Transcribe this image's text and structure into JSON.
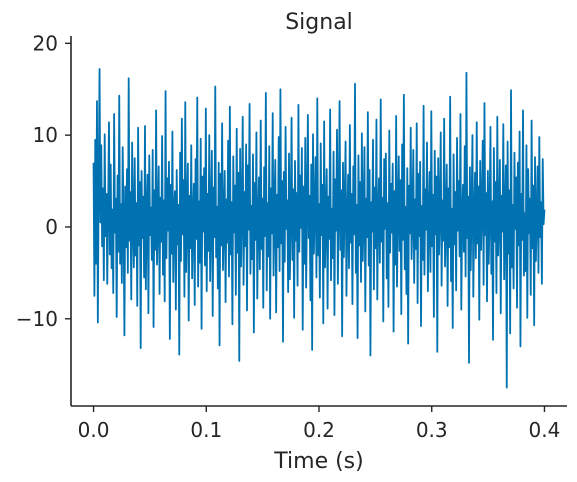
{
  "chart_data": {
    "type": "line",
    "title": "Signal",
    "xlabel": "Time (s)",
    "ylabel": "",
    "xlim": [
      -0.02,
      0.42
    ],
    "ylim": [
      -19.5,
      20.8
    ],
    "xticks": [
      0.0,
      0.1,
      0.2,
      0.3,
      0.4
    ],
    "xtick_labels": [
      "0.0",
      "0.1",
      "0.2",
      "0.3",
      "0.4"
    ],
    "yticks": [
      -10,
      0,
      10,
      20
    ],
    "ytick_labels": [
      "−10",
      "0",
      "10",
      "20"
    ],
    "grid": false,
    "legend": "none",
    "color": "#0072b2",
    "sample_interval_s": 0.0005,
    "series": [
      {
        "x_start": 0.0,
        "x_end": 0.4,
        "values": [
          7.0,
          -7.5,
          9.5,
          -4.0,
          13.7,
          -10.4,
          5.0,
          17.2,
          0.5,
          8.9,
          -2.1,
          4.2,
          -5.8,
          10.1,
          -1.0,
          3.6,
          -6.2,
          2.2,
          11.4,
          -3.0,
          6.8,
          -4.5,
          1.9,
          -7.2,
          12.3,
          -0.6,
          3.1,
          -9.8,
          5.6,
          -2.7,
          14.3,
          -4.0,
          2.5,
          -6.1,
          8.7,
          0.9,
          -11.8,
          4.4,
          -2.2,
          6.3,
          -5.0,
          16.2,
          -1.5,
          3.8,
          -7.9,
          9.2,
          0.2,
          -4.4,
          7.5,
          -3.1,
          2.6,
          -8.6,
          10.8,
          -2.0,
          4.9,
          -13.2,
          6.1,
          -1.2,
          3.3,
          -5.5,
          11.0,
          -6.8,
          1.4,
          5.7,
          -9.4,
          7.8,
          -0.9,
          2.1,
          -3.6,
          8.4,
          -10.9,
          4.0,
          -2.5,
          12.7,
          -4.1,
          0.6,
          6.6,
          -7.3,
          3.2,
          -1.6,
          9.9,
          -5.2,
          2.9,
          -8.1,
          14.8,
          -3.4,
          5.3,
          -0.4,
          7.1,
          -12.2,
          4.6,
          -2.9,
          10.4,
          -6.0,
          1.7,
          3.9,
          -9.0,
          6.2,
          -1.9,
          2.4,
          -13.9,
          8.1,
          -3.7,
          11.8,
          -0.8,
          5.1,
          -7.6,
          13.6,
          -4.9,
          2.0,
          6.9,
          -10.2,
          3.4,
          -2.3,
          8.9,
          -5.6,
          1.1,
          4.7,
          -8.5,
          7.4,
          -1.3,
          14.1,
          -6.5,
          2.8,
          -3.9,
          9.6,
          -11.1,
          5.5,
          -0.5,
          6.4,
          -4.2,
          12.9,
          -7.0,
          3.6,
          -2.6,
          10.0,
          -5.9,
          1.5,
          8.3,
          -9.7,
          4.3,
          -1.1,
          15.3,
          -3.3,
          2.2,
          -6.7,
          7.0,
          -12.9,
          5.8,
          -2.0,
          11.3,
          -4.7,
          0.8,
          6.1,
          -8.2,
          3.0,
          -1.7,
          9.4,
          -5.4,
          13.1,
          -3.0,
          2.7,
          -10.6,
          7.7,
          -0.6,
          4.5,
          -7.4,
          10.7,
          -2.8,
          5.9,
          -14.6,
          8.5,
          -4.3,
          1.3,
          12.0,
          -6.3,
          3.8,
          -2.1,
          9.0,
          -9.1,
          6.7,
          -0.3,
          13.4,
          -5.1,
          2.3,
          -3.5,
          7.9,
          -11.5,
          4.8,
          -1.4,
          10.3,
          -7.8,
          0.4,
          5.4,
          -4.6,
          11.6,
          -2.4,
          3.1,
          -8.8,
          6.5,
          -1.0,
          14.6,
          -6.9,
          2.6,
          -3.2,
          8.8,
          -10.0,
          4.2,
          -0.7,
          12.4,
          -5.3,
          1.8,
          7.3,
          -9.3,
          3.5,
          -2.2,
          9.8,
          -4.8,
          15.0,
          -1.8,
          5.0,
          -12.5,
          6.0,
          -3.8,
          10.9,
          -0.2,
          2.9,
          -7.1,
          8.0,
          -5.7,
          1.0,
          11.9,
          -3.6,
          4.1,
          -9.9,
          7.2,
          -1.5,
          3.7,
          -6.4,
          13.3,
          -2.7,
          5.6,
          -0.1,
          8.6,
          -11.2,
          4.4,
          -4.0,
          9.7,
          -6.6,
          2.1,
          12.2,
          -1.2,
          3.4,
          -8.0,
          6.8,
          -13.4,
          10.1,
          -2.9,
          1.6,
          7.6,
          -5.5,
          14.0,
          -3.1,
          2.5,
          -7.7,
          9.1,
          -0.9,
          4.6,
          -10.5,
          11.5,
          -4.4,
          0.7,
          6.3,
          -8.9,
          3.3,
          -1.3,
          12.8,
          -5.8,
          2.0,
          -3.4,
          8.2,
          -9.6,
          5.2,
          -0.4,
          10.6,
          -6.2,
          1.9,
          13.7,
          -2.5,
          4.0,
          -11.9,
          7.0,
          -3.3,
          2.8,
          9.3,
          -7.5,
          0.3,
          5.7,
          -4.5,
          11.1,
          -1.7,
          3.6,
          -8.4,
          6.6,
          -0.8,
          15.6,
          -5.0,
          2.4,
          -12.1,
          7.8,
          -2.0,
          4.9,
          -6.0,
          10.2,
          -3.7,
          1.2,
          8.7,
          -9.2,
          3.1,
          -1.1,
          12.5,
          -4.2,
          6.2,
          -14.0,
          2.7,
          -0.5,
          9.5,
          -6.8,
          4.3,
          -2.3,
          11.7,
          -7.9,
          1.5,
          5.3,
          -3.9,
          13.9,
          -1.6,
          3.2,
          -10.3,
          7.4,
          -0.2,
          8.0,
          -5.6,
          2.6,
          -8.7,
          10.5,
          -2.8,
          4.7,
          -0.6,
          6.9,
          -11.4,
          3.9,
          -4.1,
          12.1,
          -6.5,
          1.8,
          7.7,
          -2.6,
          5.1,
          -9.5,
          9.0,
          -1.4,
          14.4,
          -4.6,
          2.2,
          -7.3,
          6.4,
          -12.7,
          4.5,
          -0.7,
          10.8,
          -3.5,
          0.9,
          8.4,
          -6.1,
          3.0,
          -2.4,
          11.3,
          -8.3,
          5.8,
          -1.0,
          7.1,
          -10.8,
          2.3,
          -3.6,
          13.2,
          -5.2,
          4.1,
          -0.3,
          9.2,
          -7.0,
          1.4,
          6.0,
          -4.9,
          12.6,
          -2.1,
          3.5,
          -9.8,
          8.3,
          -0.8,
          5.5,
          -13.6,
          7.5,
          -3.0,
          1.7,
          10.3,
          -6.4,
          2.9,
          -1.5,
          11.8,
          -4.3,
          0.5,
          6.8,
          -8.6,
          4.2,
          -2.2,
          14.2,
          -5.9,
          2.0,
          -11.0,
          7.9,
          -1.9,
          3.8,
          -6.9,
          9.7,
          -0.4,
          5.0,
          -3.2,
          12.3,
          -9.0,
          1.1,
          4.6,
          -2.7,
          8.8,
          -5.4,
          16.8,
          -1.2,
          3.3,
          -14.8,
          6.5,
          -4.7,
          2.5,
          10.0,
          -7.6,
          0.8,
          5.9,
          -3.4,
          11.4,
          -1.8,
          4.4,
          -10.1,
          7.2,
          -2.5,
          2.1,
          9.4,
          -6.3,
          13.5,
          -0.9,
          3.7,
          -8.1,
          6.1,
          -4.0,
          1.3,
          10.9,
          -5.1,
          2.8,
          -12.3,
          8.6,
          -1.6,
          4.9,
          -7.2,
          12.0,
          -3.1,
          0.6,
          7.3,
          -9.4,
          3.4,
          -0.5,
          11.2,
          -5.7,
          1.9,
          6.7,
          -17.5,
          9.3,
          -2.9,
          4.0,
          -11.6,
          14.9,
          -4.4,
          2.4,
          -6.7,
          8.1,
          -0.2,
          5.4,
          -8.8,
          7.0,
          -2.0,
          10.4,
          -13.0,
          3.6,
          -1.4,
          12.7,
          -5.3,
          1.5,
          -4.8,
          8.9,
          -9.9,
          6.3,
          -0.7,
          3.1,
          -7.4,
          11.6,
          -2.3,
          4.5,
          -10.7,
          7.6,
          -3.7,
          1.0,
          6.6,
          -5.0,
          9.8,
          -1.1,
          2.7,
          -6.2,
          7.4,
          0.3,
          1.9
        ]
      }
    ]
  }
}
